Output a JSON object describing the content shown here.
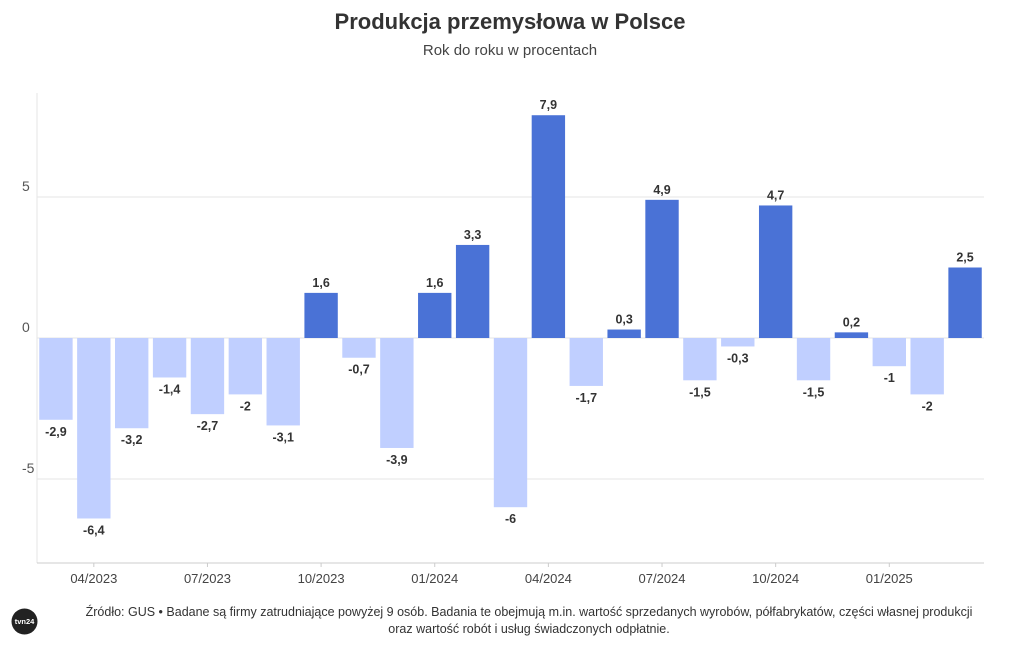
{
  "chart_data": {
    "type": "bar",
    "title": "Produkcja przemysłowa w Polsce",
    "subtitle": "Rok do roku w procentach",
    "xlabel": "",
    "ylabel": "",
    "ylim": [
      -8,
      8.6
    ],
    "yticks": [
      -5,
      0,
      5
    ],
    "ytick_labels": [
      "-5",
      "0",
      "5"
    ],
    "grid": true,
    "categories": [
      "03/2023",
      "04/2023",
      "05/2023",
      "06/2023",
      "07/2023",
      "08/2023",
      "09/2023",
      "10/2023",
      "11/2023",
      "12/2023",
      "01/2024",
      "02/2024",
      "03/2024",
      "04/2024",
      "05/2024",
      "06/2024",
      "07/2024",
      "08/2024",
      "09/2024",
      "10/2024",
      "11/2024",
      "12/2024",
      "01/2025",
      "02/2025",
      "03/2025"
    ],
    "values": [
      -2.9,
      -6.4,
      -3.2,
      -1.4,
      -2.7,
      -2,
      -3.1,
      1.6,
      -0.7,
      -3.9,
      1.6,
      3.3,
      -6,
      7.9,
      -1.7,
      0.3,
      4.9,
      -1.5,
      -0.3,
      4.7,
      -1.5,
      0.2,
      -1,
      -2,
      2.5
    ],
    "value_labels": [
      "-2,9",
      "-6,4",
      "-3,2",
      "-1,4",
      "-2,7",
      "-2",
      "-3,1",
      "1,6",
      "-0,7",
      "-3,9",
      "1,6",
      "3,3",
      "-6",
      "7,9",
      "-1,7",
      "0,3",
      "4,9",
      "-1,5",
      "-0,3",
      "4,7",
      "-1,5",
      "0,2",
      "-1",
      "-2",
      "2,5"
    ],
    "x_tick_indices": [
      1,
      4,
      7,
      10,
      13,
      16,
      19,
      22
    ],
    "x_tick_labels": [
      "04/2023",
      "07/2023",
      "10/2023",
      "01/2024",
      "04/2024",
      "07/2024",
      "10/2024",
      "01/2025"
    ],
    "colors": {
      "positive": "#4a72d6",
      "negative": "#c0cfff",
      "grid": "#e6e6e6",
      "axis": "#cccccc",
      "text": "#333333"
    }
  },
  "footer": {
    "source_line1": "Źródło: GUS • Badane są firmy zatrudniające powyżej 9 osób. Badania te obejmują m.in. wartość sprzedanych wyrobów, półfabrykatów, części własnej produkcji",
    "source_line2": "oraz wartość robót i usług świadczonych odpłatnie."
  },
  "logo": {
    "text": "tvn24"
  }
}
